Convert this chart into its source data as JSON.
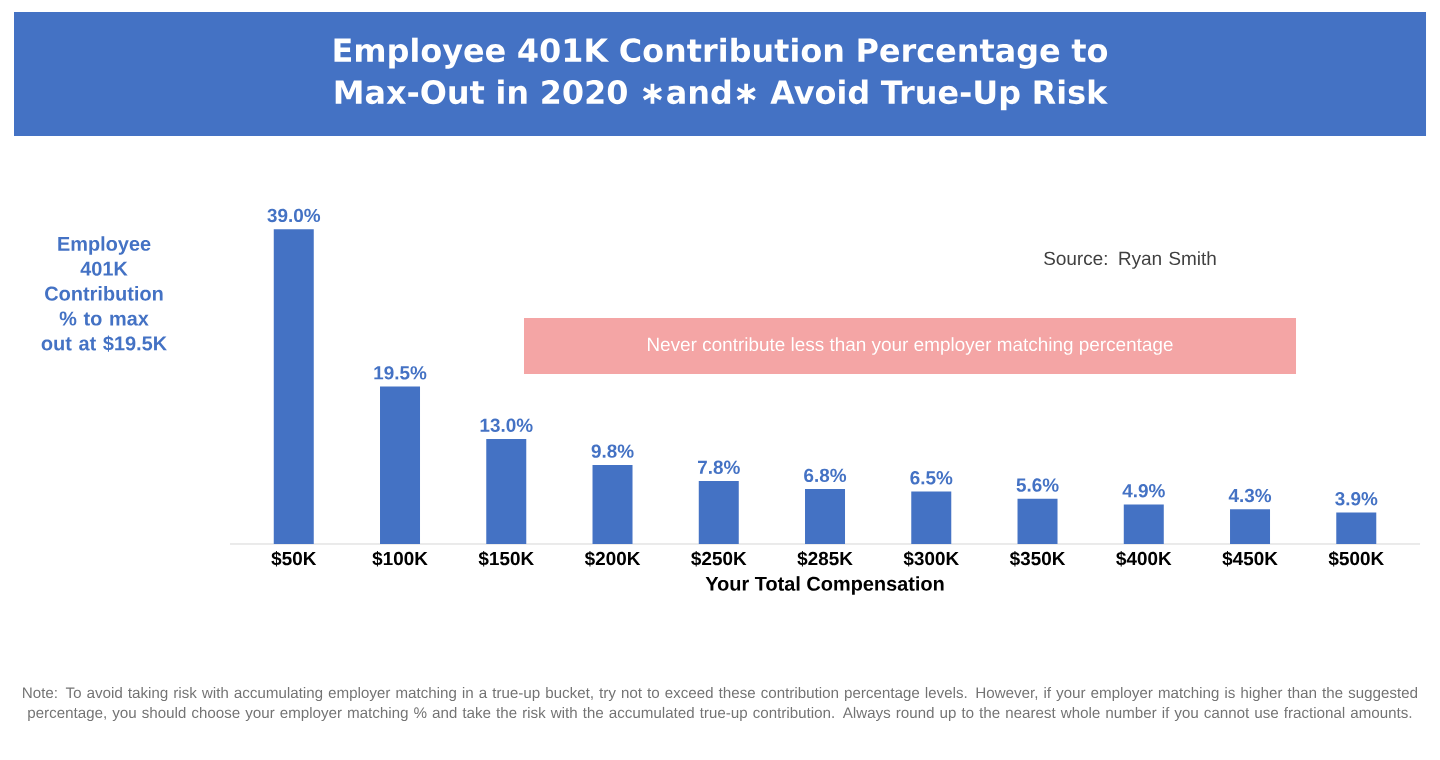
{
  "chart_data": {
    "type": "bar",
    "title": "Employee 401K Contribution Percentage to Max-Out in 2020 ∗and∗ Avoid True-Up Risk",
    "ylabel": "Employee 401K Contribution % to max out at $19.5K",
    "xlabel": "Your Total Compensation",
    "categories": [
      "$50K",
      "$100K",
      "$150K",
      "$200K",
      "$250K",
      "$285K",
      "$300K",
      "$350K",
      "$400K",
      "$450K",
      "$500K"
    ],
    "values": [
      39.0,
      19.5,
      13.0,
      9.8,
      7.8,
      6.8,
      6.5,
      5.6,
      4.9,
      4.3,
      3.9
    ],
    "value_labels": [
      "39.0%",
      "19.5%",
      "13.0%",
      "9.8%",
      "7.8%",
      "6.8%",
      "6.5%",
      "5.6%",
      "4.9%",
      "4.3%",
      "3.9%"
    ],
    "color": "#4472c4",
    "annotations": [
      "Source: Ryan Smith",
      "Never contribute less than your employer matching percentage",
      "Note: To avoid taking risk with accumulating employer matching in a true-up bucket, try not to exceed these contribution percentage levels. However, if your employer matching is higher than the suggested percentage, you should choose your employer matching % and take the risk with the accumulated true-up contribution. Always round up to the nearest whole number if you cannot use fractional amounts."
    ],
    "grid": false
  }
}
